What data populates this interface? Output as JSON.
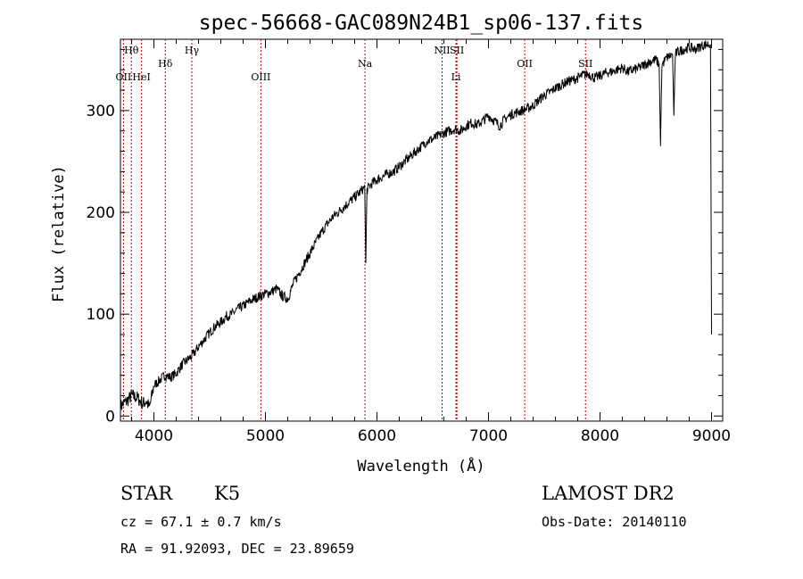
{
  "chart_data": {
    "type": "line",
    "title": "spec-56668-GAC089N24B1_sp06-137.fits",
    "xlabel": "Wavelength (Å)",
    "ylabel": "Flux (relative)",
    "xlim": [
      3700,
      9100
    ],
    "ylim": [
      -5,
      370
    ],
    "x_ticks": [
      4000,
      5000,
      6000,
      7000,
      8000,
      9000
    ],
    "y_ticks": [
      0,
      100,
      200,
      300
    ],
    "line_color": "#000000",
    "marker_color": "#c00000",
    "series": [
      {
        "x": [
          3700,
          3760,
          3800,
          3850,
          3900,
          3930,
          3960,
          4000,
          4050,
          4100,
          4150,
          4200,
          4250,
          4300,
          4350,
          4400,
          4450,
          4500,
          4550,
          4600,
          4650,
          4700,
          4750,
          4800,
          4850,
          4900,
          4950,
          5000,
          5050,
          5100,
          5150,
          5200,
          5250,
          5300,
          5350,
          5400,
          5450,
          5500,
          5550,
          5600,
          5650,
          5700,
          5750,
          5800,
          5850,
          5890,
          5900,
          5910,
          5950,
          6000,
          6050,
          6100,
          6150,
          6200,
          6250,
          6300,
          6350,
          6400,
          6450,
          6500,
          6550,
          6600,
          6650,
          6700,
          6750,
          6800,
          6850,
          6900,
          6950,
          7000,
          7050,
          7100,
          7150,
          7200,
          7250,
          7300,
          7350,
          7400,
          7450,
          7500,
          7550,
          7600,
          7650,
          7700,
          7750,
          7800,
          7850,
          7900,
          7950,
          8000,
          8050,
          8100,
          8150,
          8200,
          8250,
          8300,
          8350,
          8400,
          8450,
          8500,
          8530,
          8542,
          8555,
          8600,
          8650,
          8662,
          8675,
          8700,
          8750,
          8800,
          8850,
          8900,
          8950,
          8990,
          9000
        ],
        "y": [
          10,
          15,
          20,
          18,
          12,
          15,
          8,
          30,
          35,
          40,
          38,
          42,
          50,
          55,
          60,
          68,
          75,
          82,
          88,
          92,
          98,
          100,
          105,
          108,
          112,
          115,
          118,
          120,
          122,
          125,
          118,
          115,
          130,
          140,
          150,
          160,
          170,
          180,
          188,
          195,
          200,
          205,
          210,
          215,
          220,
          225,
          150,
          222,
          228,
          232,
          235,
          238,
          240,
          245,
          250,
          255,
          260,
          265,
          270,
          272,
          275,
          278,
          280,
          282,
          280,
          285,
          288,
          286,
          290,
          295,
          290,
          285,
          292,
          296,
          298,
          300,
          302,
          305,
          310,
          315,
          318,
          322,
          325,
          328,
          330,
          332,
          335,
          336,
          332,
          334,
          337,
          338,
          340,
          342,
          338,
          340,
          342,
          345,
          348,
          350,
          345,
          265,
          345,
          352,
          355,
          295,
          355,
          358,
          360,
          362,
          360,
          363,
          365,
          365,
          80
        ]
      }
    ],
    "line_markers": [
      {
        "name": "Hθ",
        "x": 3798,
        "row": 1
      },
      {
        "name": "OII",
        "x": 3727,
        "row": 2
      },
      {
        "name": "HeI",
        "x": 3889,
        "row": 2
      },
      {
        "name": "Hδ",
        "x": 4102,
        "row": 1.5
      },
      {
        "name": "Hγ",
        "x": 4340,
        "row": 1
      },
      {
        "name": "OIII",
        "x": 4959,
        "row": 2
      },
      {
        "name": "Na",
        "x": 5893,
        "row": 1.5
      },
      {
        "name": "NII",
        "x": 6584,
        "row": 1
      },
      {
        "name": "SII",
        "x": 6717,
        "row": 1
      },
      {
        "name": "Li",
        "x": 6708,
        "row": 2
      },
      {
        "name": "OII",
        "x": 7325,
        "row": 1.5
      },
      {
        "name": "SII",
        "x": 7870,
        "row": 1.5
      }
    ]
  },
  "info": {
    "class": "STAR",
    "subclass": "K5",
    "survey": "LAMOST DR2",
    "cz": "cz = 67.1 ± 0.7 km/s",
    "obs_date": "Obs-Date: 20140110",
    "coords": "RA =  91.92093, DEC =  23.89659"
  }
}
